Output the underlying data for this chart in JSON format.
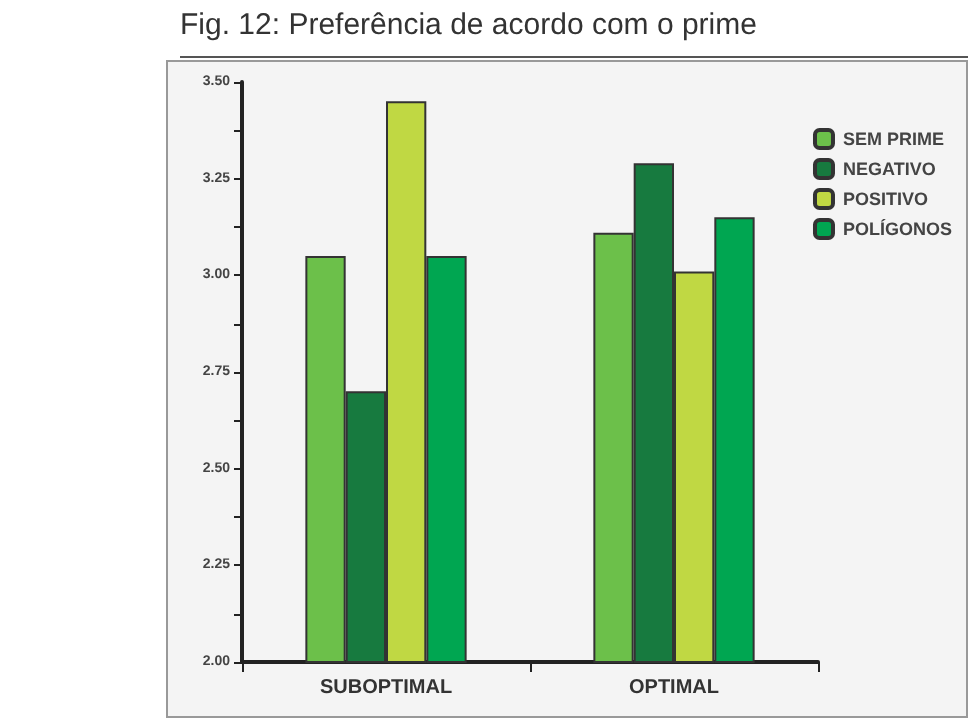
{
  "chart_data": {
    "type": "bar",
    "title": "Fig. 12: Preferência de acordo com o prime",
    "categories": [
      "SUBOPTIMAL",
      "OPTIMAL"
    ],
    "series": [
      {
        "name": "SEM PRIME",
        "color": "#6cc04a",
        "values": [
          3.05,
          3.11
        ]
      },
      {
        "name": "NEGATIVO",
        "color": "#177a3f",
        "values": [
          2.7,
          3.29
        ]
      },
      {
        "name": "POSITIVO",
        "color": "#c0d843",
        "values": [
          3.45,
          3.01
        ]
      },
      {
        "name": "POLÍGONOS",
        "color": "#00a651",
        "values": [
          3.05,
          3.15
        ]
      }
    ],
    "ylim": [
      2,
      3.5
    ],
    "yticks": [
      "2.00",
      {
        "value": 2.125,
        "label": null
      },
      {
        "value": 2.25,
        "label": "2.25"
      },
      {
        "value": 2.375,
        "label": null
      },
      {
        "value": 2.5,
        "label": "2.50"
      },
      {
        "value": 2.625,
        "label": null
      },
      {
        "value": 2.75,
        "label": "2.75"
      },
      {
        "value": 2.875,
        "label": null
      },
      {
        "value": 3,
        "label": "3.00"
      },
      {
        "value": 3.125,
        "label": null
      },
      {
        "value": 3.25,
        "label": "3.25"
      },
      {
        "value": 3.375,
        "label": null
      },
      {
        "value": 3.5,
        "label": "3.50"
      }
    ],
    "grid": false,
    "legend": "top right"
  }
}
